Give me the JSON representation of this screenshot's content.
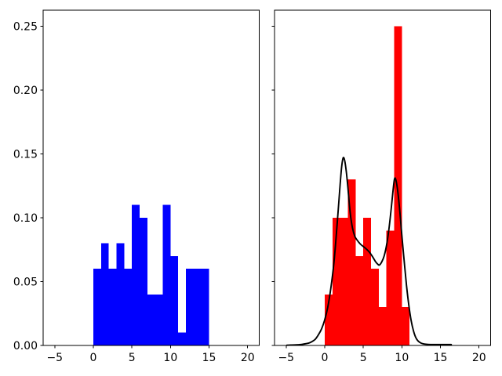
{
  "figure": {
    "background": "#ffffff",
    "spine_color": "#000000",
    "tick_color": "#000000",
    "tick_label_color": "#000000"
  },
  "chart_data": [
    {
      "id": "left-histogram",
      "type": "bar",
      "subtype": "density-histogram",
      "title": "",
      "xlabel": "",
      "ylabel": "",
      "bar_color": "#0000ff",
      "bin_edges": [
        0,
        1,
        2,
        3,
        4,
        5,
        6,
        7,
        8,
        9,
        10,
        11,
        12,
        13,
        14,
        15
      ],
      "values": [
        0.06,
        0.08,
        0.06,
        0.08,
        0.06,
        0.11,
        0.1,
        0.04,
        0.04,
        0.11,
        0.07,
        0.01,
        0.06,
        0.06,
        0.06
      ],
      "xlim": [
        -6.5,
        21.5
      ],
      "ylim": [
        0,
        0.2625
      ],
      "x_ticks": [
        -5,
        0,
        5,
        10,
        15,
        20
      ],
      "x_tick_labels": [
        "−5",
        "0",
        "5",
        "10",
        "15",
        "20"
      ],
      "y_ticks": [
        0,
        0.05,
        0.1,
        0.15,
        0.2,
        0.25
      ],
      "y_tick_labels": [
        "0.00",
        "0.05",
        "0.10",
        "0.15",
        "0.20",
        "0.25"
      ],
      "show_y_tick_labels": true,
      "grid": false,
      "legend": null
    },
    {
      "id": "right-histogram-kde",
      "type": "bar",
      "subtype": "density-histogram-with-kde",
      "title": "",
      "xlabel": "",
      "ylabel": "",
      "bar_color": "#ff0000",
      "bin_edges": [
        0,
        1,
        2,
        3,
        4,
        5,
        6,
        7,
        8,
        9,
        10,
        11
      ],
      "values": [
        0.04,
        0.1,
        0.1,
        0.13,
        0.07,
        0.1,
        0.06,
        0.03,
        0.09,
        0.25,
        0.03
      ],
      "kde_line": {
        "color": "#000000",
        "line_width": 1.9,
        "points": [
          [
            -4.9,
            0.0002
          ],
          [
            -4.4,
            0.0003
          ],
          [
            -3.9,
            0.0004
          ],
          [
            -3.4,
            0.0006
          ],
          [
            -2.9,
            0.0009
          ],
          [
            -2.4,
            0.0014
          ],
          [
            -2.0,
            0.002
          ],
          [
            -1.6,
            0.0032
          ],
          [
            -1.2,
            0.005
          ],
          [
            -0.8,
            0.0085
          ],
          [
            -0.4,
            0.013
          ],
          [
            0.0,
            0.02
          ],
          [
            0.4,
            0.03
          ],
          [
            0.8,
            0.045
          ],
          [
            1.2,
            0.065
          ],
          [
            1.6,
            0.094
          ],
          [
            2.0,
            0.126
          ],
          [
            2.2,
            0.14
          ],
          [
            2.4,
            0.147
          ],
          [
            2.6,
            0.1445
          ],
          [
            2.8,
            0.136
          ],
          [
            3.0,
            0.124
          ],
          [
            3.3,
            0.104
          ],
          [
            3.6,
            0.092
          ],
          [
            3.9,
            0.0855
          ],
          [
            4.2,
            0.0825
          ],
          [
            4.6,
            0.0795
          ],
          [
            5.0,
            0.0775
          ],
          [
            5.4,
            0.0755
          ],
          [
            5.8,
            0.073
          ],
          [
            6.2,
            0.0695
          ],
          [
            6.6,
            0.0655
          ],
          [
            6.9,
            0.0635
          ],
          [
            7.1,
            0.063
          ],
          [
            7.4,
            0.0655
          ],
          [
            7.7,
            0.07
          ],
          [
            8.0,
            0.078
          ],
          [
            8.3,
            0.09
          ],
          [
            8.6,
            0.106
          ],
          [
            8.85,
            0.121
          ],
          [
            9.05,
            0.1305
          ],
          [
            9.25,
            0.129
          ],
          [
            9.5,
            0.119
          ],
          [
            9.75,
            0.104
          ],
          [
            10.0,
            0.086
          ],
          [
            10.3,
            0.066
          ],
          [
            10.6,
            0.047
          ],
          [
            10.9,
            0.0315
          ],
          [
            11.2,
            0.0195
          ],
          [
            11.5,
            0.0115
          ],
          [
            11.8,
            0.0062
          ],
          [
            12.1,
            0.0035
          ],
          [
            12.5,
            0.0018
          ],
          [
            12.9,
            0.0011
          ],
          [
            13.4,
            0.0008
          ],
          [
            14.2,
            0.0007
          ],
          [
            15.2,
            0.0007
          ],
          [
            16.4,
            0.0007
          ]
        ]
      },
      "xlim": [
        -6.5,
        21.5
      ],
      "ylim": [
        0,
        0.2625
      ],
      "x_ticks": [
        -5,
        0,
        5,
        10,
        15,
        20
      ],
      "x_tick_labels": [
        "−5",
        "0",
        "5",
        "10",
        "15",
        "20"
      ],
      "y_ticks": [
        0,
        0.05,
        0.1,
        0.15,
        0.2,
        0.25
      ],
      "y_tick_labels": [],
      "show_y_tick_labels": false,
      "grid": false,
      "legend": null
    }
  ]
}
